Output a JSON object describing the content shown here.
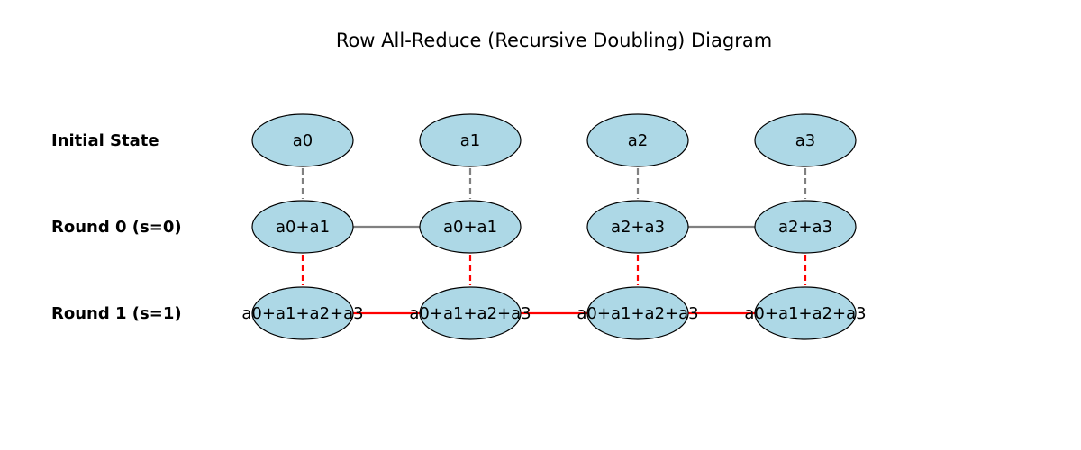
{
  "title": "Row All-Reduce (Recursive Doubling) Diagram",
  "colors": {
    "node_fill": "#add8e6",
    "node_stroke": "#000000",
    "initial_edge": "#808080",
    "round0_edge": "#808080",
    "round1_edge": "#ff0000"
  },
  "rows": [
    {
      "label": "Initial State",
      "nodes": [
        "a0",
        "a1",
        "a2",
        "a3"
      ]
    },
    {
      "label": "Round 0 (s=0)",
      "nodes": [
        "a0+a1",
        "a0+a1",
        "a2+a3",
        "a2+a3"
      ]
    },
    {
      "label": "Round 1 (s=1)",
      "nodes": [
        "a0+a1+a2+a3",
        "a0+a1+a2+a3",
        "a0+a1+a2+a3",
        "a0+a1+a2+a3"
      ]
    }
  ],
  "vertical_edges": [
    {
      "from_row": 0,
      "to_row": 1,
      "style": "dashed",
      "color_key": "initial_edge"
    },
    {
      "from_row": 1,
      "to_row": 2,
      "style": "dashed",
      "color_key": "round1_edge"
    }
  ],
  "horizontal_edges": [
    {
      "row": 1,
      "from": 0,
      "to": 1,
      "style": "solid",
      "color_key": "round0_edge"
    },
    {
      "row": 1,
      "from": 2,
      "to": 3,
      "style": "solid",
      "color_key": "round0_edge"
    },
    {
      "row": 2,
      "from": 0,
      "to": 1,
      "style": "solid",
      "color_key": "round1_edge"
    },
    {
      "row": 2,
      "from": 1,
      "to": 2,
      "style": "solid",
      "color_key": "round1_edge"
    },
    {
      "row": 2,
      "from": 2,
      "to": 3,
      "style": "solid",
      "color_key": "round1_edge"
    }
  ]
}
